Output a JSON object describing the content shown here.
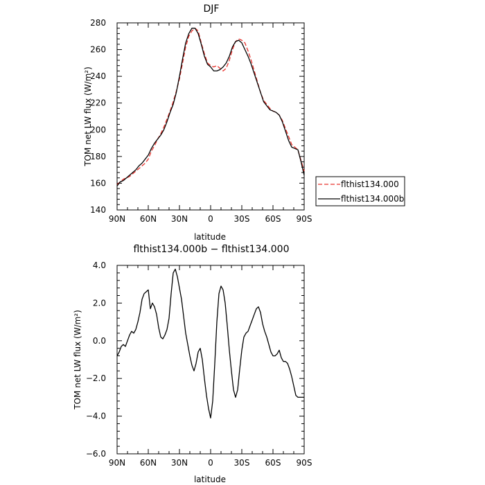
{
  "chart_data": [
    {
      "type": "line",
      "title": "DJF",
      "xlabel": "latitude",
      "ylabel": "TOM net LW flux (W/m²)",
      "xlim": [
        -90,
        90
      ],
      "ylim": [
        140,
        280
      ],
      "x_ticks": [
        -90,
        -60,
        -30,
        0,
        30,
        60,
        90
      ],
      "x_tick_labels": [
        "90N",
        "60N",
        "30N",
        "0",
        "30S",
        "60S",
        "90S"
      ],
      "y_ticks": [
        140,
        160,
        180,
        200,
        220,
        240,
        260,
        280
      ],
      "y_tick_labels": [
        "140",
        "160",
        "180",
        "200",
        "220",
        "240",
        "260",
        "280"
      ],
      "legend_position": "outside-right",
      "grid": false,
      "series": [
        {
          "name": "flthist134.000",
          "color": "#e8302a",
          "dash": "dashed",
          "x": [
            -90,
            -87,
            -84,
            -81,
            -78,
            -75,
            -72,
            -69,
            -66,
            -63,
            -60,
            -57,
            -54,
            -51,
            -48,
            -45,
            -42,
            -39,
            -36,
            -33,
            -30,
            -27,
            -24,
            -21,
            -18,
            -15,
            -12,
            -9,
            -6,
            -3,
            0,
            3,
            6,
            9,
            12,
            15,
            18,
            21,
            24,
            27,
            30,
            33,
            36,
            39,
            42,
            45,
            48,
            51,
            54,
            57,
            60,
            63,
            66,
            69,
            72,
            75,
            78,
            81,
            84,
            87,
            90
          ],
          "values": [
            159,
            161,
            163,
            164,
            165,
            167,
            169,
            171,
            173,
            175,
            178,
            184,
            188,
            193,
            197,
            202,
            208,
            214,
            221,
            229,
            238,
            250,
            262,
            270,
            274,
            276,
            274,
            265,
            257,
            250,
            248,
            247,
            248,
            246,
            244,
            246,
            252,
            260,
            266,
            268,
            267,
            265,
            259,
            252,
            244,
            236,
            228,
            222,
            219,
            216,
            214,
            213,
            211,
            207,
            201,
            195,
            189,
            187,
            185,
            177,
            169
          ]
        },
        {
          "name": "flthist134.000b",
          "color": "#000000",
          "dash": "solid",
          "x": [
            -90,
            -87,
            -84,
            -81,
            -78,
            -75,
            -72,
            -69,
            -66,
            -63,
            -60,
            -57,
            -54,
            -51,
            -48,
            -45,
            -42,
            -39,
            -36,
            -33,
            -30,
            -27,
            -24,
            -21,
            -18,
            -15,
            -12,
            -9,
            -6,
            -3,
            0,
            3,
            6,
            9,
            12,
            15,
            18,
            21,
            24,
            27,
            30,
            33,
            36,
            39,
            42,
            45,
            48,
            51,
            54,
            57,
            60,
            63,
            66,
            69,
            72,
            75,
            78,
            81,
            84,
            87,
            90
          ],
          "values": [
            158,
            161,
            162,
            164,
            166,
            168,
            170,
            173,
            175,
            178,
            181,
            186,
            190,
            193,
            196,
            200,
            206,
            213,
            219,
            228,
            240,
            253,
            265,
            272,
            276,
            276,
            272,
            264,
            255,
            249,
            247,
            244,
            244,
            245,
            247,
            250,
            255,
            262,
            266,
            267,
            265,
            260,
            255,
            249,
            242,
            235,
            228,
            221,
            218,
            215,
            214,
            213,
            211,
            206,
            199,
            192,
            187,
            186,
            185,
            176,
            166
          ]
        }
      ]
    },
    {
      "type": "line",
      "title": "flthist134.000b − flthist134.000",
      "xlabel": "latitude",
      "ylabel": "TOM net LW flux (W/m²)",
      "xlim": [
        -90,
        90
      ],
      "ylim": [
        -6,
        4
      ],
      "x_ticks": [
        -90,
        -60,
        -30,
        0,
        30,
        60,
        90
      ],
      "x_tick_labels": [
        "90N",
        "60N",
        "30N",
        "0",
        "30S",
        "60S",
        "90S"
      ],
      "y_ticks": [
        -6,
        -4,
        -2,
        0,
        2,
        4
      ],
      "y_tick_labels": [
        "−6.0",
        "−4.0",
        "−2.0",
        "0.0",
        "2.0",
        "4.0"
      ],
      "grid": false,
      "series": [
        {
          "color": "#000000",
          "dash": "solid",
          "x": [
            -90,
            -88,
            -86,
            -84,
            -82,
            -80,
            -78,
            -76,
            -74,
            -72,
            -70,
            -68,
            -66,
            -64,
            -62,
            -60,
            -58,
            -56,
            -54,
            -52,
            -50,
            -48,
            -46,
            -44,
            -42,
            -40,
            -38,
            -36,
            -34,
            -32,
            -30,
            -28,
            -26,
            -24,
            -22,
            -20,
            -18,
            -16,
            -14,
            -12,
            -10,
            -8,
            -6,
            -4,
            -2,
            0,
            2,
            4,
            6,
            8,
            10,
            12,
            14,
            16,
            18,
            20,
            22,
            24,
            26,
            28,
            30,
            32,
            34,
            36,
            38,
            40,
            42,
            44,
            46,
            48,
            50,
            52,
            54,
            56,
            58,
            60,
            62,
            64,
            66,
            68,
            70,
            72,
            74,
            76,
            78,
            80,
            82,
            84,
            86,
            88,
            90
          ],
          "values": [
            -0.8,
            -0.6,
            -0.3,
            -0.2,
            -0.3,
            0.0,
            0.3,
            0.5,
            0.4,
            0.6,
            1.0,
            1.5,
            2.2,
            2.5,
            2.6,
            2.7,
            1.7,
            2.0,
            1.8,
            1.4,
            0.7,
            0.2,
            0.1,
            0.3,
            0.6,
            1.2,
            2.5,
            3.6,
            3.8,
            3.4,
            2.8,
            2.2,
            1.3,
            0.4,
            -0.2,
            -0.8,
            -1.3,
            -1.6,
            -1.2,
            -0.6,
            -0.4,
            -1.0,
            -2.0,
            -2.9,
            -3.6,
            -4.1,
            -3.2,
            -1.2,
            1.0,
            2.5,
            2.9,
            2.7,
            2.0,
            0.8,
            -0.5,
            -1.6,
            -2.6,
            -3.0,
            -2.6,
            -1.5,
            -0.5,
            0.2,
            0.4,
            0.5,
            0.8,
            1.1,
            1.4,
            1.7,
            1.8,
            1.5,
            0.9,
            0.5,
            0.2,
            -0.2,
            -0.6,
            -0.8,
            -0.8,
            -0.7,
            -0.5,
            -0.9,
            -1.1,
            -1.1,
            -1.2,
            -1.5,
            -1.9,
            -2.4,
            -2.9,
            -3.0,
            -3.0,
            -3.0,
            -3.0
          ]
        }
      ]
    }
  ]
}
